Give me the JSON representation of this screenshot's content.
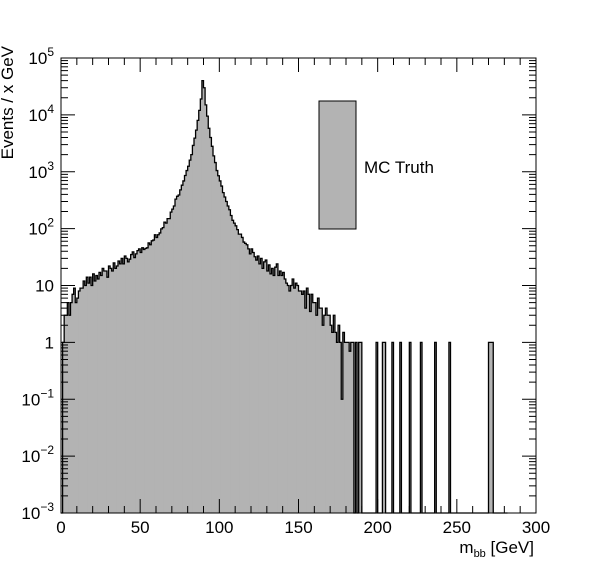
{
  "chart_data": {
    "type": "bar",
    "subtype": "histogram",
    "xlabel_main": "m",
    "xlabel_sub": "bb",
    "xlabel_unit": " [GeV]",
    "ylabel": "Events / x GeV",
    "xlim": [
      0,
      300
    ],
    "ylim": [
      0.001,
      100000
    ],
    "y_scale": "log",
    "grid": false,
    "x_ticks": [
      {
        "value": 0,
        "label": "0"
      },
      {
        "value": 50,
        "label": "50"
      },
      {
        "value": 100,
        "label": "100"
      },
      {
        "value": 150,
        "label": "150"
      },
      {
        "value": 200,
        "label": "200"
      },
      {
        "value": 250,
        "label": "250"
      },
      {
        "value": 300,
        "label": "300"
      }
    ],
    "y_ticks": [
      {
        "value": 0.001,
        "base": "10",
        "exp": "−3"
      },
      {
        "value": 0.01,
        "base": "10",
        "exp": "−2"
      },
      {
        "value": 0.1,
        "base": "10",
        "exp": "−1"
      },
      {
        "value": 1,
        "label": "1"
      },
      {
        "value": 10,
        "label": "10"
      },
      {
        "value": 100,
        "base": "10",
        "exp": "2"
      },
      {
        "value": 1000,
        "base": "10",
        "exp": "3"
      },
      {
        "value": 10000,
        "base": "10",
        "exp": "4"
      },
      {
        "value": 100000,
        "base": "10",
        "exp": "5"
      }
    ],
    "legend": {
      "position": "top-right",
      "entries": [
        {
          "name": "MC Truth",
          "color": "#b3b3b3"
        }
      ]
    },
    "series": [
      {
        "name": "MC Truth",
        "color": "#b3b3b3",
        "line_color": "#000000",
        "bin_width": 1,
        "bins_start": 0,
        "values": [
          0.001,
          1,
          3,
          3,
          5,
          3,
          5,
          7,
          9,
          5,
          6,
          8,
          9,
          9,
          12,
          10,
          14,
          11,
          14,
          10,
          16,
          12,
          15,
          13,
          17,
          15,
          20,
          18,
          18,
          14,
          22,
          20,
          18,
          25,
          20,
          22,
          27,
          24,
          30,
          24,
          33,
          30,
          26,
          29,
          35,
          39,
          31,
          36,
          41,
          44,
          38,
          46,
          43,
          45,
          46,
          56,
          52,
          61,
          63,
          78,
          70,
          78,
          84,
          99,
          104,
          130,
          125,
          150,
          150,
          195,
          220,
          250,
          330,
          370,
          390,
          480,
          580,
          690,
          860,
          1050,
          1250,
          1600,
          2000,
          2900,
          3900,
          5400,
          8000,
          12000,
          19000,
          40000,
          30000,
          15000,
          9500,
          5800,
          4000,
          2800,
          1900,
          1450,
          1050,
          850,
          690,
          560,
          430,
          360,
          300,
          250,
          215,
          170,
          140,
          125,
          112,
          96,
          80,
          80,
          70,
          58,
          55,
          52,
          44,
          36,
          44,
          38,
          32,
          28,
          33,
          24,
          30,
          20,
          26,
          28,
          18,
          23,
          16,
          20,
          15,
          21,
          24,
          15,
          18,
          15,
          17,
          13,
          11,
          10,
          8,
          10,
          13,
          9,
          11,
          10,
          8,
          8,
          7,
          8,
          4,
          9,
          7,
          3.5,
          7,
          5,
          5,
          3,
          6,
          4,
          4,
          2,
          3,
          4,
          3,
          3,
          2,
          1.5,
          3,
          1.5,
          1,
          2,
          1,
          0.1,
          1.5,
          1,
          1,
          1,
          0.7,
          1,
          1,
          0.001,
          1,
          0.001,
          1,
          1,
          0.001,
          0.001,
          0.001,
          0.001,
          0.001,
          0.001,
          0.001,
          0.001,
          0.001,
          1,
          0.001,
          0.001,
          0.001,
          1,
          1,
          0.001,
          0.001,
          0.001,
          0.001,
          1,
          0.001,
          0.001,
          0.001,
          0.001,
          1,
          0.001,
          0.001,
          0.001,
          0.001,
          0.001,
          1,
          0.001,
          0.001,
          0.001,
          0.001,
          0.001,
          0.001,
          1,
          0.001,
          0.001,
          0.001,
          0.001,
          0.001,
          0.001,
          0.001,
          0.001,
          1,
          0.001,
          0.001,
          0.001,
          0.001,
          0.001,
          0.001,
          0.001,
          0.001,
          1,
          0.001,
          0.001,
          0.001,
          0.001,
          0.001,
          0.001,
          0.001,
          0.001,
          0.001,
          0.001,
          0.001,
          0.001,
          0.001,
          0.001,
          0.001,
          0.001,
          0.001,
          0.001,
          0.001,
          0.001,
          0.001,
          0.001,
          0.001,
          0.001,
          1,
          1,
          1,
          0.001,
          0.001,
          0.001,
          0.001,
          0.001,
          0.001,
          0.001,
          0.001,
          0.001
        ]
      }
    ]
  }
}
